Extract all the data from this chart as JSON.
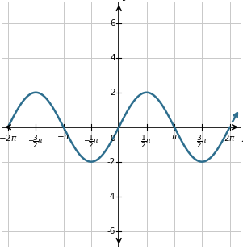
{
  "xlabel": "x",
  "ylabel": "y",
  "xlim_data": [
    -7.2,
    7.2
  ],
  "ylim_data": [
    -7.5,
    7.5
  ],
  "plot_xlim": [
    -6.6,
    6.9
  ],
  "plot_ylim": [
    -6.9,
    7.2
  ],
  "amplitude": 2,
  "line_color": "#2d6e8e",
  "line_width": 1.8,
  "grid_color": "#c8c8c8",
  "background_color": "#ffffff",
  "axis_color": "#000000",
  "pi": 3.141592653589793,
  "figsize": [
    3.01,
    3.09
  ],
  "dpi": 100
}
